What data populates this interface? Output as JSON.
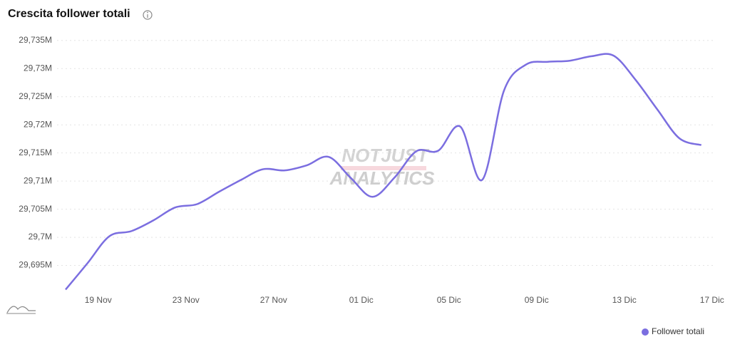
{
  "chart_data": {
    "type": "line",
    "title": "Crescita follower totali",
    "watermark": [
      "NOTJUST",
      "ANALYTICS"
    ],
    "categories": [
      null,
      "19 Nov",
      null,
      null,
      null,
      "23 Nov",
      null,
      null,
      null,
      "27 Nov",
      null,
      null,
      null,
      "01 Dic",
      null,
      null,
      null,
      "05 Dic",
      null,
      null,
      null,
      "09 Dic",
      null,
      null,
      null,
      "13 Dic",
      null,
      null,
      null,
      "17 Dic"
    ],
    "series": [
      {
        "name": "Follower totali",
        "color": "#7b6ee0",
        "values": [
          29.6907,
          29.6954,
          29.7002,
          29.7011,
          29.703,
          29.7053,
          29.7059,
          29.7081,
          29.7102,
          29.7121,
          29.7119,
          29.7128,
          29.7143,
          29.7106,
          29.7072,
          29.7106,
          29.7153,
          29.7154,
          29.7197,
          29.7102,
          29.7261,
          29.7307,
          29.7312,
          29.7314,
          29.7322,
          29.7323,
          29.728,
          29.7227,
          29.7176,
          29.7164
        ]
      }
    ],
    "ylim": [
      29.69,
      29.737
    ],
    "yticks": [
      {
        "value": 29.695,
        "label": "29,695M"
      },
      {
        "value": 29.7,
        "label": "29,7M"
      },
      {
        "value": 29.705,
        "label": "29,705M"
      },
      {
        "value": 29.71,
        "label": "29,71M"
      },
      {
        "value": 29.715,
        "label": "29,715M"
      },
      {
        "value": 29.72,
        "label": "29,72M"
      },
      {
        "value": 29.725,
        "label": "29,725M"
      },
      {
        "value": 29.73,
        "label": "29,73M"
      },
      {
        "value": 29.735,
        "label": "29,735M"
      }
    ],
    "grid": true,
    "legend": "bottom-right"
  }
}
